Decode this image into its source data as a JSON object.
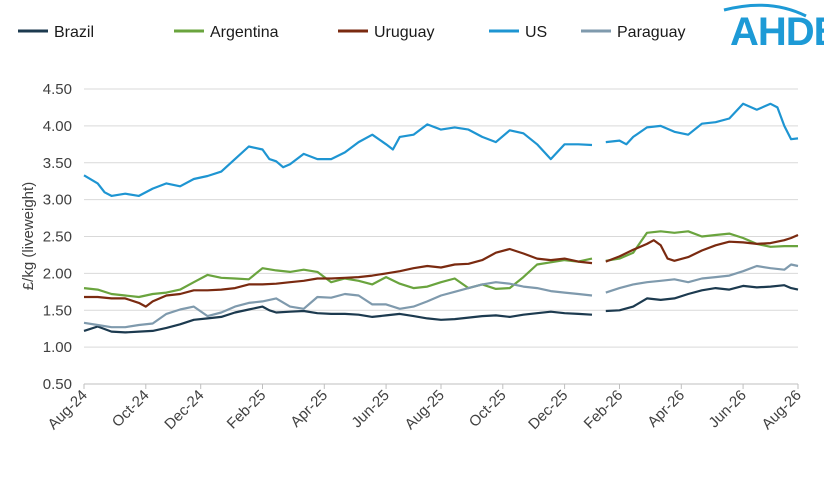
{
  "logo": {
    "text": "AHDB",
    "color": "#1d9ad6"
  },
  "chart_data": {
    "type": "line",
    "ylabel": "£/kg (liveweight)",
    "ylim": [
      0.5,
      4.5
    ],
    "yticks": [
      "0.50",
      "1.00",
      "1.50",
      "2.00",
      "2.50",
      "3.00",
      "3.50",
      "4.00",
      "4.50"
    ],
    "grid": "horizontal",
    "legend_position": "top",
    "x_tick_labels": [
      "Aug-24",
      "Oct-24",
      "Dec-24",
      "Feb-25",
      "Apr-25",
      "Jun-25",
      "Aug-25",
      "Oct-25",
      "Dec-25",
      "Feb-26",
      "Apr-26",
      "Jun-26",
      "Aug-26"
    ],
    "x_tick_weeks": [
      0,
      9,
      17,
      26,
      35,
      44,
      52,
      61,
      70,
      78,
      87,
      96,
      104
    ],
    "gap_after_week": 75,
    "series": [
      {
        "name": "Brazil",
        "color": "#1c3a4f",
        "points": [
          [
            0,
            1.22
          ],
          [
            2,
            1.28
          ],
          [
            4,
            1.21
          ],
          [
            6,
            1.2
          ],
          [
            8,
            1.21
          ],
          [
            10,
            1.22
          ],
          [
            12,
            1.26
          ],
          [
            14,
            1.31
          ],
          [
            16,
            1.37
          ],
          [
            18,
            1.39
          ],
          [
            20,
            1.41
          ],
          [
            22,
            1.47
          ],
          [
            24,
            1.51
          ],
          [
            26,
            1.55
          ],
          [
            27,
            1.5
          ],
          [
            28,
            1.47
          ],
          [
            30,
            1.48
          ],
          [
            32,
            1.49
          ],
          [
            34,
            1.46
          ],
          [
            36,
            1.45
          ],
          [
            38,
            1.45
          ],
          [
            40,
            1.44
          ],
          [
            42,
            1.41
          ],
          [
            44,
            1.43
          ],
          [
            46,
            1.45
          ],
          [
            48,
            1.42
          ],
          [
            50,
            1.39
          ],
          [
            52,
            1.37
          ],
          [
            54,
            1.38
          ],
          [
            56,
            1.4
          ],
          [
            58,
            1.42
          ],
          [
            60,
            1.43
          ],
          [
            62,
            1.41
          ],
          [
            64,
            1.44
          ],
          [
            66,
            1.46
          ],
          [
            68,
            1.48
          ],
          [
            70,
            1.46
          ],
          [
            72,
            1.45
          ],
          [
            74,
            1.44
          ],
          [
            76,
            1.49
          ],
          [
            78,
            1.5
          ],
          [
            80,
            1.55
          ],
          [
            82,
            1.66
          ],
          [
            84,
            1.64
          ],
          [
            86,
            1.66
          ],
          [
            88,
            1.72
          ],
          [
            90,
            1.77
          ],
          [
            92,
            1.8
          ],
          [
            94,
            1.78
          ],
          [
            96,
            1.83
          ],
          [
            98,
            1.81
          ],
          [
            100,
            1.82
          ],
          [
            102,
            1.84
          ],
          [
            103,
            1.8
          ],
          [
            104,
            1.78
          ]
        ]
      },
      {
        "name": "Argentina",
        "color": "#6aa43e",
        "points": [
          [
            0,
            1.8
          ],
          [
            2,
            1.78
          ],
          [
            4,
            1.72
          ],
          [
            6,
            1.7
          ],
          [
            8,
            1.68
          ],
          [
            10,
            1.72
          ],
          [
            12,
            1.74
          ],
          [
            14,
            1.78
          ],
          [
            16,
            1.88
          ],
          [
            18,
            1.98
          ],
          [
            20,
            1.94
          ],
          [
            22,
            1.93
          ],
          [
            24,
            1.92
          ],
          [
            26,
            2.07
          ],
          [
            28,
            2.04
          ],
          [
            30,
            2.02
          ],
          [
            32,
            2.05
          ],
          [
            34,
            2.02
          ],
          [
            36,
            1.88
          ],
          [
            38,
            1.93
          ],
          [
            40,
            1.9
          ],
          [
            42,
            1.85
          ],
          [
            44,
            1.95
          ],
          [
            46,
            1.86
          ],
          [
            48,
            1.8
          ],
          [
            50,
            1.82
          ],
          [
            52,
            1.88
          ],
          [
            54,
            1.93
          ],
          [
            56,
            1.8
          ],
          [
            58,
            1.85
          ],
          [
            60,
            1.79
          ],
          [
            62,
            1.8
          ],
          [
            64,
            1.95
          ],
          [
            66,
            2.12
          ],
          [
            68,
            2.15
          ],
          [
            70,
            2.18
          ],
          [
            72,
            2.16
          ],
          [
            74,
            2.2
          ],
          [
            76,
            2.17
          ],
          [
            78,
            2.2
          ],
          [
            80,
            2.28
          ],
          [
            82,
            2.55
          ],
          [
            84,
            2.57
          ],
          [
            86,
            2.55
          ],
          [
            88,
            2.57
          ],
          [
            90,
            2.5
          ],
          [
            92,
            2.52
          ],
          [
            94,
            2.54
          ],
          [
            96,
            2.48
          ],
          [
            98,
            2.4
          ],
          [
            100,
            2.36
          ],
          [
            102,
            2.37
          ],
          [
            104,
            2.37
          ]
        ]
      },
      {
        "name": "Uruguay",
        "color": "#7a2a10",
        "points": [
          [
            0,
            1.68
          ],
          [
            2,
            1.68
          ],
          [
            4,
            1.66
          ],
          [
            6,
            1.66
          ],
          [
            8,
            1.6
          ],
          [
            9,
            1.55
          ],
          [
            10,
            1.62
          ],
          [
            12,
            1.7
          ],
          [
            14,
            1.72
          ],
          [
            16,
            1.77
          ],
          [
            18,
            1.77
          ],
          [
            20,
            1.78
          ],
          [
            22,
            1.8
          ],
          [
            24,
            1.85
          ],
          [
            26,
            1.85
          ],
          [
            28,
            1.86
          ],
          [
            30,
            1.88
          ],
          [
            32,
            1.9
          ],
          [
            34,
            1.93
          ],
          [
            36,
            1.93
          ],
          [
            38,
            1.94
          ],
          [
            40,
            1.95
          ],
          [
            42,
            1.97
          ],
          [
            44,
            2.0
          ],
          [
            46,
            2.03
          ],
          [
            48,
            2.07
          ],
          [
            50,
            2.1
          ],
          [
            52,
            2.08
          ],
          [
            54,
            2.12
          ],
          [
            56,
            2.13
          ],
          [
            58,
            2.18
          ],
          [
            60,
            2.28
          ],
          [
            62,
            2.33
          ],
          [
            64,
            2.27
          ],
          [
            66,
            2.2
          ],
          [
            68,
            2.18
          ],
          [
            70,
            2.2
          ],
          [
            72,
            2.16
          ],
          [
            74,
            2.14
          ],
          [
            76,
            2.16
          ],
          [
            78,
            2.23
          ],
          [
            80,
            2.32
          ],
          [
            82,
            2.4
          ],
          [
            83,
            2.45
          ],
          [
            84,
            2.38
          ],
          [
            85,
            2.2
          ],
          [
            86,
            2.17
          ],
          [
            88,
            2.22
          ],
          [
            90,
            2.31
          ],
          [
            92,
            2.38
          ],
          [
            94,
            2.43
          ],
          [
            96,
            2.42
          ],
          [
            98,
            2.4
          ],
          [
            100,
            2.41
          ],
          [
            102,
            2.45
          ],
          [
            103,
            2.48
          ],
          [
            104,
            2.52
          ]
        ]
      },
      {
        "name": "US",
        "color": "#1e95d2",
        "points": [
          [
            0,
            3.33
          ],
          [
            2,
            3.22
          ],
          [
            3,
            3.1
          ],
          [
            4,
            3.05
          ],
          [
            6,
            3.08
          ],
          [
            8,
            3.05
          ],
          [
            10,
            3.15
          ],
          [
            12,
            3.22
          ],
          [
            14,
            3.18
          ],
          [
            16,
            3.28
          ],
          [
            18,
            3.32
          ],
          [
            20,
            3.38
          ],
          [
            22,
            3.55
          ],
          [
            24,
            3.72
          ],
          [
            26,
            3.68
          ],
          [
            27,
            3.55
          ],
          [
            28,
            3.52
          ],
          [
            29,
            3.44
          ],
          [
            30,
            3.48
          ],
          [
            32,
            3.62
          ],
          [
            34,
            3.55
          ],
          [
            36,
            3.55
          ],
          [
            38,
            3.64
          ],
          [
            40,
            3.78
          ],
          [
            42,
            3.88
          ],
          [
            44,
            3.75
          ],
          [
            45,
            3.68
          ],
          [
            46,
            3.85
          ],
          [
            48,
            3.88
          ],
          [
            50,
            4.02
          ],
          [
            52,
            3.95
          ],
          [
            54,
            3.98
          ],
          [
            56,
            3.95
          ],
          [
            58,
            3.85
          ],
          [
            60,
            3.78
          ],
          [
            62,
            3.94
          ],
          [
            64,
            3.9
          ],
          [
            66,
            3.75
          ],
          [
            68,
            3.55
          ],
          [
            70,
            3.75
          ],
          [
            72,
            3.75
          ],
          [
            74,
            3.74
          ],
          [
            76,
            3.78
          ],
          [
            78,
            3.8
          ],
          [
            79,
            3.75
          ],
          [
            80,
            3.85
          ],
          [
            82,
            3.98
          ],
          [
            84,
            4.0
          ],
          [
            86,
            3.92
          ],
          [
            88,
            3.88
          ],
          [
            90,
            4.03
          ],
          [
            92,
            4.05
          ],
          [
            94,
            4.1
          ],
          [
            96,
            4.3
          ],
          [
            98,
            4.22
          ],
          [
            100,
            4.3
          ],
          [
            101,
            4.25
          ],
          [
            102,
            4.0
          ],
          [
            103,
            3.82
          ],
          [
            104,
            3.83
          ]
        ]
      },
      {
        "name": "Paraguay",
        "color": "#7f9aad",
        "points": [
          [
            0,
            1.33
          ],
          [
            2,
            1.3
          ],
          [
            4,
            1.27
          ],
          [
            6,
            1.27
          ],
          [
            8,
            1.3
          ],
          [
            10,
            1.32
          ],
          [
            12,
            1.45
          ],
          [
            14,
            1.51
          ],
          [
            16,
            1.55
          ],
          [
            18,
            1.42
          ],
          [
            20,
            1.47
          ],
          [
            22,
            1.55
          ],
          [
            24,
            1.6
          ],
          [
            26,
            1.62
          ],
          [
            28,
            1.66
          ],
          [
            30,
            1.55
          ],
          [
            32,
            1.52
          ],
          [
            34,
            1.68
          ],
          [
            36,
            1.67
          ],
          [
            38,
            1.72
          ],
          [
            40,
            1.7
          ],
          [
            42,
            1.58
          ],
          [
            44,
            1.58
          ],
          [
            46,
            1.52
          ],
          [
            48,
            1.55
          ],
          [
            50,
            1.62
          ],
          [
            52,
            1.7
          ],
          [
            54,
            1.75
          ],
          [
            56,
            1.8
          ],
          [
            58,
            1.85
          ],
          [
            60,
            1.88
          ],
          [
            62,
            1.86
          ],
          [
            64,
            1.82
          ],
          [
            66,
            1.8
          ],
          [
            68,
            1.76
          ],
          [
            70,
            1.74
          ],
          [
            72,
            1.72
          ],
          [
            74,
            1.7
          ],
          [
            76,
            1.74
          ],
          [
            78,
            1.8
          ],
          [
            80,
            1.85
          ],
          [
            82,
            1.88
          ],
          [
            84,
            1.9
          ],
          [
            86,
            1.92
          ],
          [
            88,
            1.88
          ],
          [
            90,
            1.93
          ],
          [
            92,
            1.95
          ],
          [
            94,
            1.97
          ],
          [
            96,
            2.03
          ],
          [
            98,
            2.1
          ],
          [
            100,
            2.07
          ],
          [
            102,
            2.05
          ],
          [
            103,
            2.12
          ],
          [
            104,
            2.1
          ]
        ]
      }
    ]
  }
}
